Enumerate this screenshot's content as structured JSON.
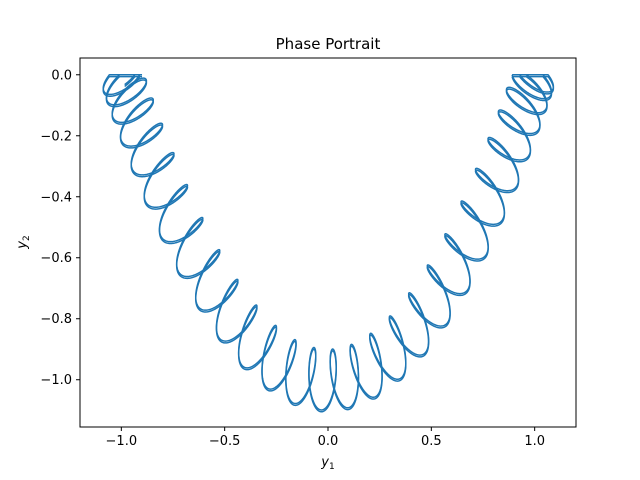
{
  "chart_data": {
    "type": "line",
    "title": "Phase Portrait",
    "xlabel": {
      "base": "y",
      "sub": "1"
    },
    "ylabel": {
      "base": "y",
      "sub": "2"
    },
    "xlim": [
      -1.2,
      1.2
    ],
    "ylim": [
      -1.155,
      0.055
    ],
    "xticks": [
      -1.0,
      -0.5,
      0.0,
      0.5,
      1.0
    ],
    "xtick_labels": [
      "−1.0",
      "−0.5",
      "0.0",
      "0.5",
      "1.0"
    ],
    "yticks": [
      0.0,
      -0.2,
      -0.4,
      -0.6,
      -0.8,
      -1.0
    ],
    "ytick_labels": [
      "0.0",
      "−0.2",
      "−0.4",
      "−0.6",
      "−0.8",
      "−1.0"
    ],
    "grid": false,
    "series": [
      {
        "color": "#1f77b4",
        "description_points": {
          "centerline_x": [
            -1.0,
            -0.75,
            -0.5,
            -0.25,
            0.0,
            0.25,
            0.5,
            0.75,
            1.0
          ],
          "centerline_y": [
            0.0,
            -0.44,
            -0.75,
            -0.94,
            -1.0,
            -0.94,
            -0.75,
            -0.44,
            0.0
          ]
        },
        "oscillation_amplitude": 0.1,
        "loops_per_side": 14
      }
    ]
  }
}
